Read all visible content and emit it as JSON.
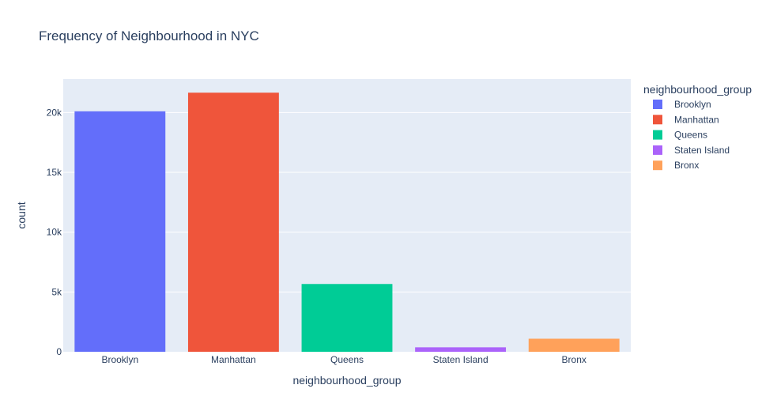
{
  "chart_data": {
    "type": "bar",
    "title": "Frequency of Neighbourhood in NYC",
    "xlabel": "neighbourhood_group",
    "ylabel": "count",
    "categories": [
      "Brooklyn",
      "Manhattan",
      "Queens",
      "Staten Island",
      "Bronx"
    ],
    "values": [
      20104,
      21661,
      5666,
      373,
      1091
    ],
    "colors": [
      "#636efa",
      "#ef553b",
      "#00cc96",
      "#ab63fa",
      "#ffa15a"
    ],
    "ylim": [
      0,
      22801
    ],
    "yticks": [
      0,
      5000,
      10000,
      15000,
      20000
    ],
    "ytick_labels": [
      "0",
      "5k",
      "10k",
      "15k",
      "20k"
    ],
    "grid": true,
    "plot_background": "#e5ecf6",
    "legend": {
      "title": "neighbourhood_group",
      "position": "right",
      "entries": [
        "Brooklyn",
        "Manhattan",
        "Queens",
        "Staten Island",
        "Bronx"
      ]
    }
  }
}
